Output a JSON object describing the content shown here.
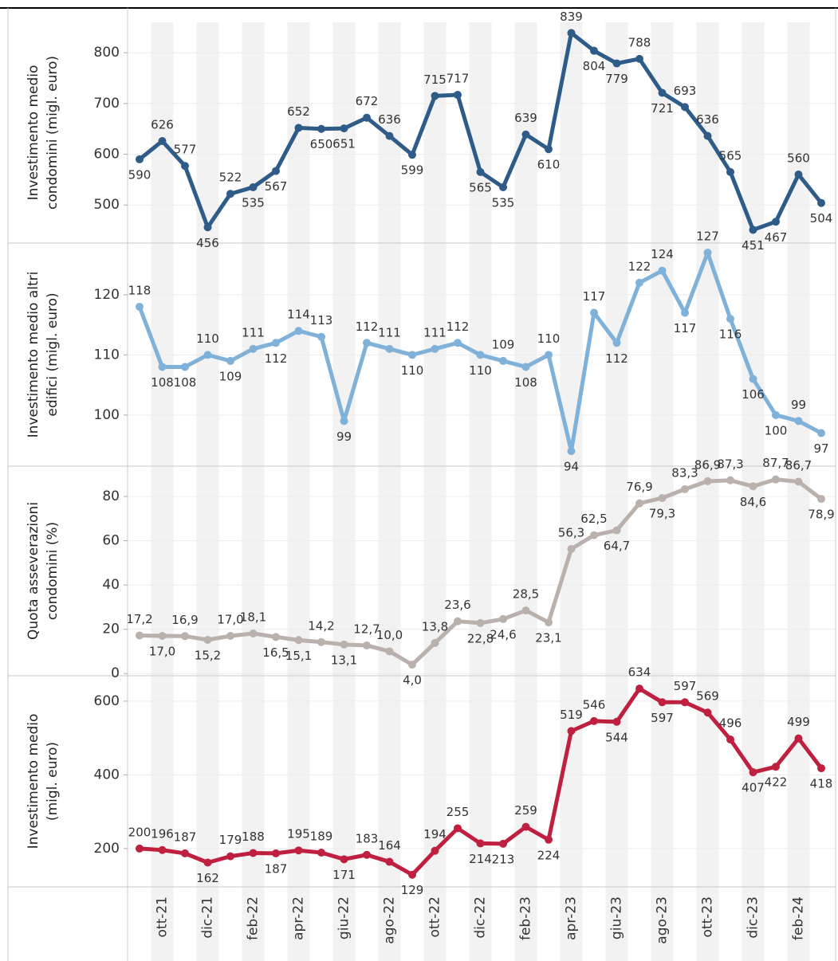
{
  "chart_data": [
    {
      "type": "line",
      "y_label": [
        "Investimento medio",
        "condomini (migl. euro)"
      ],
      "color": "#2e5b87",
      "grid": true,
      "values": [
        590,
        626,
        577,
        456,
        522,
        535,
        567,
        652,
        650,
        651,
        672,
        636,
        599,
        715,
        717,
        565,
        535,
        639,
        610,
        839,
        804,
        779,
        788,
        721,
        693,
        636,
        565,
        451,
        467,
        560,
        504
      ],
      "ylim": [
        425,
        860
      ],
      "yticks": [
        500,
        600,
        700,
        800
      ]
    },
    {
      "type": "line",
      "y_label": [
        "Investimento medio altri",
        "edifici (migl. euro)"
      ],
      "color": "#7fb1d9",
      "grid": true,
      "values": [
        118,
        108,
        108,
        110,
        109,
        111,
        112,
        114,
        113,
        99,
        112,
        111,
        110,
        111,
        112,
        110,
        109,
        108,
        110,
        94,
        117,
        112,
        122,
        124,
        117,
        127,
        116,
        106,
        100,
        99,
        97
      ],
      "ylim": [
        91.5,
        128.6
      ],
      "yticks": [
        100,
        110,
        120
      ]
    },
    {
      "type": "line",
      "y_label": [
        "Quota asseverazioni",
        "condomini (%)"
      ],
      "color": "#bab0ac",
      "grid": true,
      "values": [
        17.2,
        17.0,
        16.9,
        15.2,
        17.0,
        18.1,
        16.5,
        15.1,
        14.2,
        13.1,
        12.7,
        10.0,
        4.0,
        13.8,
        23.6,
        22.8,
        24.6,
        28.5,
        23.1,
        56.3,
        62.5,
        64.7,
        76.9,
        79.3,
        83.3,
        86.9,
        87.3,
        84.6,
        87.7,
        86.7,
        78.9
      ],
      "value_labels": [
        "17,2",
        "17,0",
        "16,9",
        "15,2",
        "17,0",
        "18,1",
        "16,5",
        "15,1",
        "14,2",
        "13,1",
        "12,7",
        "10,0",
        "4,0",
        "13,8",
        "23,6",
        "22,8",
        "24,6",
        "28,5",
        "23,1",
        "56,3",
        "62,5",
        "64,7",
        "76,9",
        "79,3",
        "83,3",
        "86,9",
        "87,3",
        "84,6",
        "87,7",
        "86,7",
        "78,9"
      ],
      "ylim": [
        -1,
        93.7
      ],
      "yticks": [
        0,
        20,
        40,
        60,
        80
      ]
    },
    {
      "type": "line",
      "y_label": [
        "Investimento medio",
        "(migl. euro)"
      ],
      "color": "#c0203f",
      "grid": true,
      "categories": [
        null,
        "ott-21",
        null,
        "dic-21",
        null,
        "feb-22",
        null,
        "apr-22",
        null,
        "giu-22",
        null,
        "ago-22",
        null,
        "ott-22",
        null,
        "dic-22",
        null,
        "feb-23",
        null,
        "apr-23",
        null,
        "giu-23",
        null,
        "ago-23",
        null,
        "ott-23",
        null,
        "dic-23",
        null,
        "feb-24",
        null
      ],
      "values": [
        200,
        196,
        187,
        162,
        179,
        188,
        187,
        195,
        189,
        171,
        183,
        164,
        129,
        194,
        255,
        214,
        213,
        259,
        224,
        519,
        546,
        544,
        634,
        597,
        597,
        569,
        496,
        407,
        422,
        499,
        418
      ],
      "ylim": [
        96,
        669
      ],
      "yticks": [
        200,
        400,
        600
      ]
    }
  ]
}
